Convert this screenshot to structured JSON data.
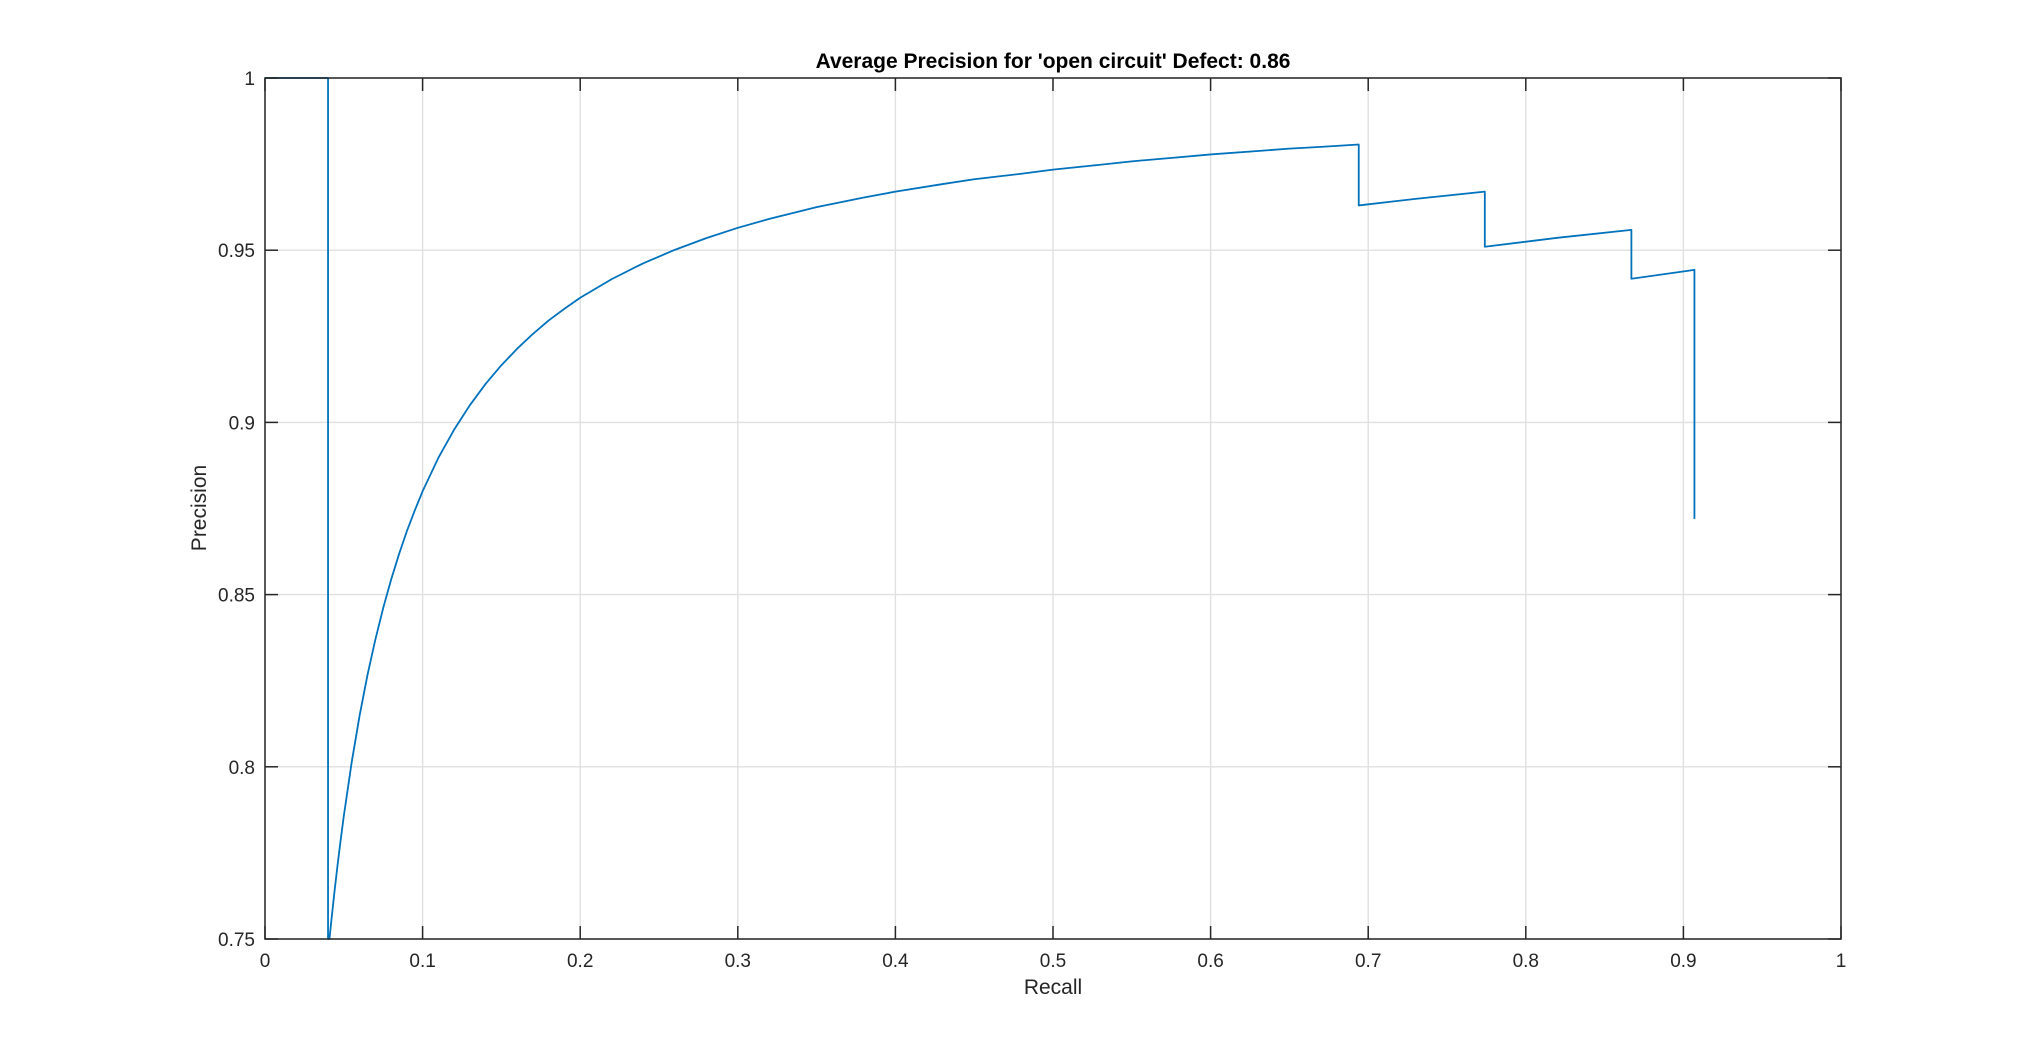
{
  "figure": {
    "background": "#ffffff"
  },
  "chart_data": {
    "type": "line",
    "title": "Average Precision for 'open circuit' Defect: 0.86",
    "xlabel": "Recall",
    "ylabel": "Precision",
    "defect_class": "open circuit",
    "average_precision": 0.86,
    "xlim": [
      0,
      1
    ],
    "ylim": [
      0.75,
      1
    ],
    "x_ticks": [
      0,
      0.1,
      0.2,
      0.3,
      0.4,
      0.5,
      0.6,
      0.7,
      0.8,
      0.9,
      1
    ],
    "y_ticks": [
      0.75,
      0.8,
      0.85,
      0.9,
      0.95,
      1
    ],
    "grid": true,
    "legend": "none",
    "line_color": "#0072BD",
    "grid_color": "#e0e0e0",
    "axis_color": "#262626",
    "text_color": "#262626",
    "series": [
      {
        "name": "precision-recall curve",
        "points": [
          [
            0,
            1
          ],
          [
            0.04,
            1
          ],
          [
            0.04,
            0.75
          ],
          [
            0.0409,
            0.75
          ],
          [
            0.042,
            0.7549
          ],
          [
            0.044,
            0.7634
          ],
          [
            0.046,
            0.7713
          ],
          [
            0.048,
            0.7787
          ],
          [
            0.05,
            0.7857
          ],
          [
            0.055,
            0.8013
          ],
          [
            0.06,
            0.8148
          ],
          [
            0.065,
            0.8266
          ],
          [
            0.07,
            0.8369
          ],
          [
            0.075,
            0.8461
          ],
          [
            0.08,
            0.8543
          ],
          [
            0.085,
            0.8617
          ],
          [
            0.09,
            0.8684
          ],
          [
            0.095,
            0.8744
          ],
          [
            0.1,
            0.88
          ],
          [
            0.11,
            0.8897
          ],
          [
            0.12,
            0.8979
          ],
          [
            0.13,
            0.905
          ],
          [
            0.14,
            0.9112
          ],
          [
            0.15,
            0.9166
          ],
          [
            0.16,
            0.9214
          ],
          [
            0.17,
            0.9257
          ],
          [
            0.18,
            0.9296
          ],
          [
            0.19,
            0.933
          ],
          [
            0.2,
            0.9362
          ],
          [
            0.22,
            0.9416
          ],
          [
            0.24,
            0.9462
          ],
          [
            0.26,
            0.9501
          ],
          [
            0.28,
            0.9535
          ],
          [
            0.3,
            0.9565
          ],
          [
            0.32,
            0.9591
          ],
          [
            0.35,
            0.9625
          ],
          [
            0.38,
            0.9653
          ],
          [
            0.4,
            0.967
          ],
          [
            0.43,
            0.9692
          ],
          [
            0.45,
            0.9706
          ],
          [
            0.48,
            0.9722
          ],
          [
            0.5,
            0.9734
          ],
          [
            0.53,
            0.9748
          ],
          [
            0.55,
            0.9758
          ],
          [
            0.58,
            0.977
          ],
          [
            0.6,
            0.9778
          ],
          [
            0.63,
            0.9788
          ],
          [
            0.65,
            0.9795
          ],
          [
            0.67,
            0.98
          ],
          [
            0.694,
            0.9807
          ],
          [
            0.694,
            0.963
          ],
          [
            0.73,
            0.9649
          ],
          [
            0.774,
            0.967
          ],
          [
            0.774,
            0.951
          ],
          [
            0.82,
            0.9536
          ],
          [
            0.867,
            0.9559
          ],
          [
            0.867,
            0.9417
          ],
          [
            0.907,
            0.9443
          ],
          [
            0.907,
            0.872
          ]
        ]
      }
    ]
  }
}
